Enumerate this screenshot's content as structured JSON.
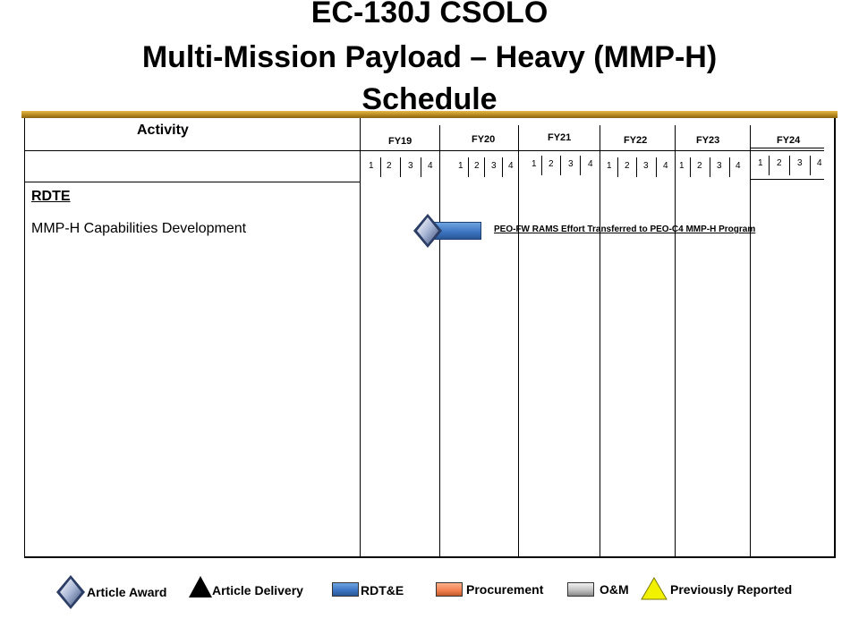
{
  "header": {
    "title_line1": "EC-130J CSOLO",
    "title_line2": "Multi-Mission Payload – Heavy (MMP-H)",
    "title_line3": "Schedule"
  },
  "table": {
    "activity_header": "Activity",
    "fiscal_years": [
      {
        "label": "FY19",
        "quarters": [
          "1",
          "2",
          "3",
          "4"
        ]
      },
      {
        "label": "FY20",
        "quarters": [
          "1",
          "2",
          "3",
          "4"
        ]
      },
      {
        "label": "FY21",
        "quarters": [
          "1",
          "2",
          "3",
          "4"
        ]
      },
      {
        "label": "FY22",
        "quarters": [
          "1",
          "2",
          "3",
          "4"
        ]
      },
      {
        "label": "FY23",
        "quarters": [
          "1",
          "2",
          "3",
          "4"
        ]
      },
      {
        "label": "FY24",
        "quarters": [
          "1",
          "2",
          "3",
          "4"
        ]
      }
    ],
    "section_heading": "RDTE",
    "rows": [
      {
        "activity": "MMP-H Capabilities Development",
        "milestone": "article-award",
        "start": "FY19 Q4",
        "bar_type": "RDT&E",
        "bar_span_quarters": [
          "FY20 Q1"
        ],
        "note": "PEO-FW RAMS Effort Transferred to PEO-C4 MMP-H Program"
      }
    ]
  },
  "legend": {
    "article_award": "Article Award",
    "article_delivery": "Article Delivery",
    "rdte": "RDT&E",
    "procurement": "Procurement",
    "om": "O&M",
    "previously_reported": "Previously Reported"
  },
  "colors": {
    "rdte": "#3b73c0",
    "procurement": "#f08050",
    "om": "#bdbdbd",
    "previously_reported": "#f2f200",
    "header_bar": "#c8961e"
  }
}
